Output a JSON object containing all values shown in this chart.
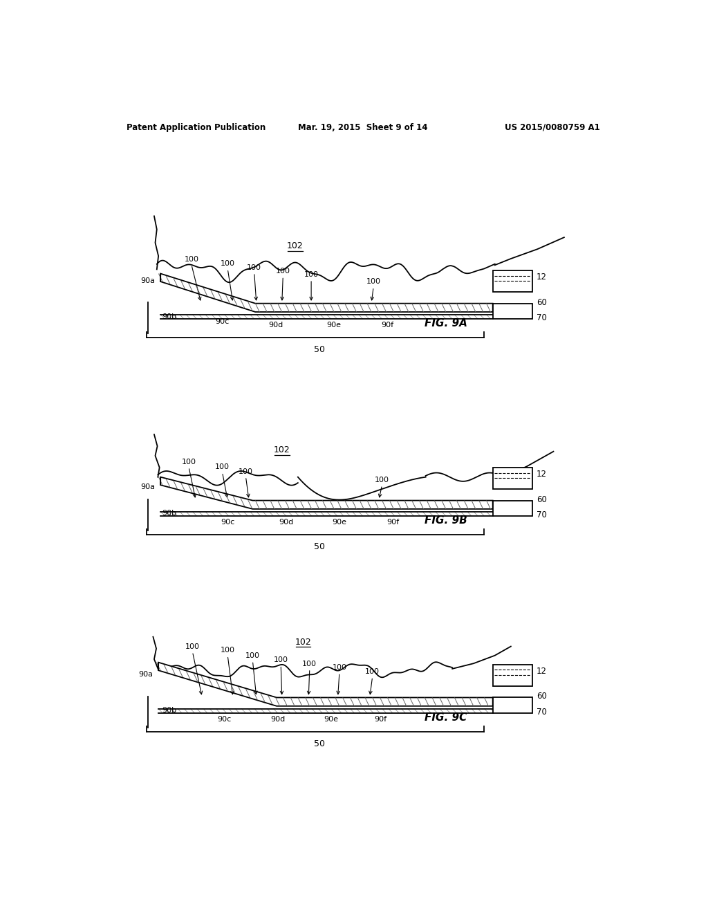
{
  "background_color": "#ffffff",
  "header_left": "Patent Application Publication",
  "header_mid": "Mar. 19, 2015  Sheet 9 of 14",
  "header_right": "US 2015/0080759 A1",
  "fig_labels": [
    "FIG. 9A",
    "FIG. 9B",
    "FIG. 9C"
  ],
  "line_color": "#000000"
}
